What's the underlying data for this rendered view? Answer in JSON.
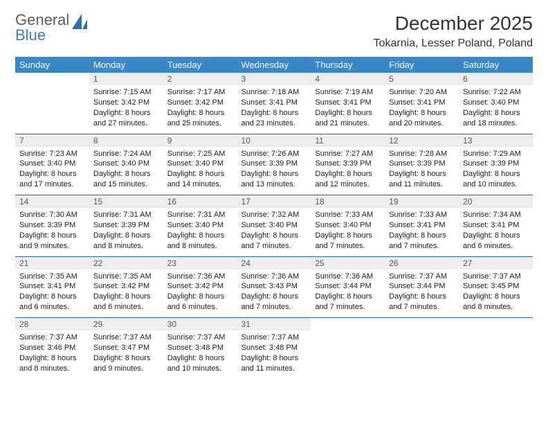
{
  "logo": {
    "line1": "General",
    "line2": "Blue",
    "accent_color": "#3b7fbd",
    "text_color": "#5a5f66"
  },
  "title": "December 2025",
  "location": "Tokarnia, Lesser Poland, Poland",
  "colors": {
    "header_bg": "#3b86c6",
    "header_text": "#ffffff",
    "daynum_bg": "#ededed",
    "daynum_text": "#595959",
    "week_divider": "#2c6aa3",
    "body_text": "#222222",
    "page_bg": "#ffffff"
  },
  "weekdays": [
    "Sunday",
    "Monday",
    "Tuesday",
    "Wednesday",
    "Thursday",
    "Friday",
    "Saturday"
  ],
  "weeks": [
    [
      {
        "n": "",
        "sr": "",
        "ss": "",
        "dl": "",
        "empty": true
      },
      {
        "n": "1",
        "sr": "Sunrise: 7:15 AM",
        "ss": "Sunset: 3:42 PM",
        "dl": "Daylight: 8 hours and 27 minutes."
      },
      {
        "n": "2",
        "sr": "Sunrise: 7:17 AM",
        "ss": "Sunset: 3:42 PM",
        "dl": "Daylight: 8 hours and 25 minutes."
      },
      {
        "n": "3",
        "sr": "Sunrise: 7:18 AM",
        "ss": "Sunset: 3:41 PM",
        "dl": "Daylight: 8 hours and 23 minutes."
      },
      {
        "n": "4",
        "sr": "Sunrise: 7:19 AM",
        "ss": "Sunset: 3:41 PM",
        "dl": "Daylight: 8 hours and 21 minutes."
      },
      {
        "n": "5",
        "sr": "Sunrise: 7:20 AM",
        "ss": "Sunset: 3:41 PM",
        "dl": "Daylight: 8 hours and 20 minutes."
      },
      {
        "n": "6",
        "sr": "Sunrise: 7:22 AM",
        "ss": "Sunset: 3:40 PM",
        "dl": "Daylight: 8 hours and 18 minutes."
      }
    ],
    [
      {
        "n": "7",
        "sr": "Sunrise: 7:23 AM",
        "ss": "Sunset: 3:40 PM",
        "dl": "Daylight: 8 hours and 17 minutes."
      },
      {
        "n": "8",
        "sr": "Sunrise: 7:24 AM",
        "ss": "Sunset: 3:40 PM",
        "dl": "Daylight: 8 hours and 15 minutes."
      },
      {
        "n": "9",
        "sr": "Sunrise: 7:25 AM",
        "ss": "Sunset: 3:40 PM",
        "dl": "Daylight: 8 hours and 14 minutes."
      },
      {
        "n": "10",
        "sr": "Sunrise: 7:26 AM",
        "ss": "Sunset: 3:39 PM",
        "dl": "Daylight: 8 hours and 13 minutes."
      },
      {
        "n": "11",
        "sr": "Sunrise: 7:27 AM",
        "ss": "Sunset: 3:39 PM",
        "dl": "Daylight: 8 hours and 12 minutes."
      },
      {
        "n": "12",
        "sr": "Sunrise: 7:28 AM",
        "ss": "Sunset: 3:39 PM",
        "dl": "Daylight: 8 hours and 11 minutes."
      },
      {
        "n": "13",
        "sr": "Sunrise: 7:29 AM",
        "ss": "Sunset: 3:39 PM",
        "dl": "Daylight: 8 hours and 10 minutes."
      }
    ],
    [
      {
        "n": "14",
        "sr": "Sunrise: 7:30 AM",
        "ss": "Sunset: 3:39 PM",
        "dl": "Daylight: 8 hours and 9 minutes."
      },
      {
        "n": "15",
        "sr": "Sunrise: 7:31 AM",
        "ss": "Sunset: 3:39 PM",
        "dl": "Daylight: 8 hours and 8 minutes."
      },
      {
        "n": "16",
        "sr": "Sunrise: 7:31 AM",
        "ss": "Sunset: 3:40 PM",
        "dl": "Daylight: 8 hours and 8 minutes."
      },
      {
        "n": "17",
        "sr": "Sunrise: 7:32 AM",
        "ss": "Sunset: 3:40 PM",
        "dl": "Daylight: 8 hours and 7 minutes."
      },
      {
        "n": "18",
        "sr": "Sunrise: 7:33 AM",
        "ss": "Sunset: 3:40 PM",
        "dl": "Daylight: 8 hours and 7 minutes."
      },
      {
        "n": "19",
        "sr": "Sunrise: 7:33 AM",
        "ss": "Sunset: 3:41 PM",
        "dl": "Daylight: 8 hours and 7 minutes."
      },
      {
        "n": "20",
        "sr": "Sunrise: 7:34 AM",
        "ss": "Sunset: 3:41 PM",
        "dl": "Daylight: 8 hours and 6 minutes."
      }
    ],
    [
      {
        "n": "21",
        "sr": "Sunrise: 7:35 AM",
        "ss": "Sunset: 3:41 PM",
        "dl": "Daylight: 8 hours and 6 minutes."
      },
      {
        "n": "22",
        "sr": "Sunrise: 7:35 AM",
        "ss": "Sunset: 3:42 PM",
        "dl": "Daylight: 8 hours and 6 minutes."
      },
      {
        "n": "23",
        "sr": "Sunrise: 7:36 AM",
        "ss": "Sunset: 3:42 PM",
        "dl": "Daylight: 8 hours and 6 minutes."
      },
      {
        "n": "24",
        "sr": "Sunrise: 7:36 AM",
        "ss": "Sunset: 3:43 PM",
        "dl": "Daylight: 8 hours and 7 minutes."
      },
      {
        "n": "25",
        "sr": "Sunrise: 7:36 AM",
        "ss": "Sunset: 3:44 PM",
        "dl": "Daylight: 8 hours and 7 minutes."
      },
      {
        "n": "26",
        "sr": "Sunrise: 7:37 AM",
        "ss": "Sunset: 3:44 PM",
        "dl": "Daylight: 8 hours and 7 minutes."
      },
      {
        "n": "27",
        "sr": "Sunrise: 7:37 AM",
        "ss": "Sunset: 3:45 PM",
        "dl": "Daylight: 8 hours and 8 minutes."
      }
    ],
    [
      {
        "n": "28",
        "sr": "Sunrise: 7:37 AM",
        "ss": "Sunset: 3:46 PM",
        "dl": "Daylight: 8 hours and 8 minutes."
      },
      {
        "n": "29",
        "sr": "Sunrise: 7:37 AM",
        "ss": "Sunset: 3:47 PM",
        "dl": "Daylight: 8 hours and 9 minutes."
      },
      {
        "n": "30",
        "sr": "Sunrise: 7:37 AM",
        "ss": "Sunset: 3:48 PM",
        "dl": "Daylight: 8 hours and 10 minutes."
      },
      {
        "n": "31",
        "sr": "Sunrise: 7:37 AM",
        "ss": "Sunset: 3:48 PM",
        "dl": "Daylight: 8 hours and 11 minutes."
      },
      {
        "n": "",
        "sr": "",
        "ss": "",
        "dl": "",
        "empty": true
      },
      {
        "n": "",
        "sr": "",
        "ss": "",
        "dl": "",
        "empty": true
      },
      {
        "n": "",
        "sr": "",
        "ss": "",
        "dl": "",
        "empty": true
      }
    ]
  ]
}
